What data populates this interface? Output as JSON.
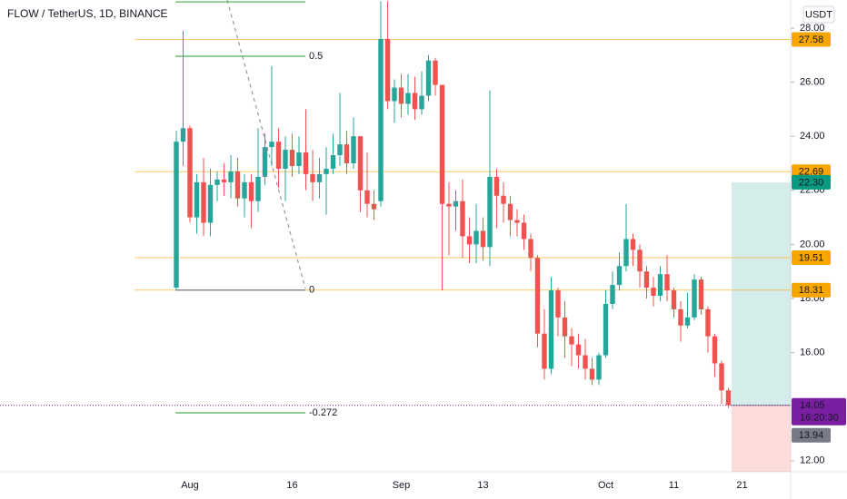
{
  "chart_data": {
    "type": "candlestick",
    "title": "FLOW / TetherUS, 1D, BINANCE",
    "currency": "USDT",
    "categories": [
      null,
      null,
      "Aug",
      null,
      null,
      null,
      null,
      null,
      null,
      null,
      null,
      null,
      null,
      null,
      null,
      null,
      null,
      "16",
      null,
      null,
      null,
      null,
      null,
      null,
      null,
      null,
      null,
      null,
      null,
      null,
      null,
      null,
      null,
      "Sep",
      null,
      null,
      null,
      null,
      null,
      null,
      null,
      null,
      null,
      null,
      null,
      "13",
      null,
      null,
      null,
      null,
      null,
      null,
      null,
      null,
      null,
      null,
      null,
      null,
      null,
      null,
      null,
      null,
      null,
      "Oct",
      null,
      null,
      null,
      null,
      null,
      null,
      null,
      null,
      null,
      "11",
      null,
      null,
      null,
      null,
      null,
      null,
      null,
      null,
      null,
      "21",
      null,
      null,
      null,
      null,
      null,
      null,
      null
    ],
    "open": [
      18.4,
      23.8,
      24.3,
      21.0,
      22.3,
      20.8,
      22.2,
      22.4,
      22.3,
      22.7,
      21.7,
      22.3,
      21.6,
      22.5,
      23.6,
      23.8,
      22.8,
      23.5,
      22.9,
      23.4,
      22.6,
      22.3,
      22.6,
      22.8,
      23.3,
      23.7,
      23.0,
      24.0,
      22.0,
      21.5,
      21.6,
      27.6,
      25.3,
      25.8,
      25.2,
      25.6,
      25.0,
      25.5,
      26.8,
      25.9,
      21.5,
      21.4,
      21.6,
      20.3,
      20.0,
      20.5,
      19.9,
      22.5,
      21.8,
      21.5,
      20.9,
      20.8,
      20.2,
      19.5,
      16.7,
      15.4,
      18.3,
      17.3,
      16.6,
      16.3,
      15.9,
      15.4,
      15.0,
      15.9,
      17.8,
      18.5,
      19.2,
      20.2,
      19.8,
      19.0,
      18.4,
      18.1,
      18.9,
      18.3,
      17.6,
      17.0,
      17.3,
      18.7,
      17.6,
      16.6,
      15.6,
      14.6,
      null,
      null,
      null,
      null,
      null,
      null,
      null,
      null,
      null
    ],
    "high": [
      24.2,
      27.9,
      24.4,
      22.6,
      23.2,
      22.8,
      22.7,
      23.0,
      23.3,
      23.2,
      22.6,
      22.6,
      24.3,
      24.1,
      26.6,
      24.3,
      24.0,
      24.1,
      24.0,
      25.0,
      23.5,
      23.2,
      23.6,
      24.1,
      25.6,
      24.2,
      24.7,
      24.0,
      23.4,
      22.0,
      29.0,
      29.0,
      26.1,
      26.3,
      26.3,
      26.2,
      26.4,
      27.0,
      26.9,
      25.9,
      22.3,
      22.0,
      22.4,
      21.0,
      21.5,
      21.0,
      25.7,
      22.8,
      22.3,
      21.8,
      21.3,
      21.1,
      20.4,
      19.6,
      17.6,
      18.8,
      18.4,
      17.9,
      16.9,
      16.7,
      16.5,
      15.8,
      16.0,
      18.3,
      19.0,
      19.7,
      21.5,
      20.4,
      20.0,
      19.2,
      18.8,
      19.2,
      19.6,
      18.4,
      17.9,
      18.2,
      18.9,
      18.8,
      17.7,
      16.7,
      15.7,
      14.7,
      null,
      null,
      null,
      null,
      null,
      null,
      null,
      null,
      null
    ],
    "low": [
      18.31,
      22.9,
      20.8,
      20.4,
      20.3,
      20.3,
      21.6,
      21.8,
      21.7,
      21.4,
      21.0,
      20.6,
      21.2,
      22.2,
      22.9,
      22.1,
      21.6,
      22.5,
      22.6,
      22.0,
      21.6,
      21.7,
      21.1,
      22.6,
      22.9,
      22.6,
      22.8,
      21.2,
      21.0,
      20.9,
      21.4,
      25.0,
      24.5,
      24.7,
      24.8,
      24.6,
      24.8,
      25.3,
      25.5,
      18.3,
      19.6,
      20.5,
      19.5,
      19.3,
      19.3,
      19.4,
      19.2,
      20.6,
      20.8,
      20.3,
      20.3,
      19.8,
      19.0,
      16.2,
      15.0,
      15.2,
      16.6,
      15.8,
      15.5,
      15.4,
      15.0,
      14.8,
      14.8,
      15.8,
      17.6,
      18.3,
      19.0,
      19.2,
      18.4,
      18.0,
      17.7,
      17.9,
      17.9,
      17.3,
      16.4,
      16.9,
      17.2,
      17.4,
      16.0,
      15.1,
      14.1,
      13.95,
      null,
      null,
      null,
      null,
      null,
      null,
      null,
      null,
      null
    ],
    "close": [
      23.8,
      24.3,
      21.0,
      22.3,
      20.8,
      22.2,
      22.4,
      22.3,
      22.7,
      21.7,
      22.3,
      21.6,
      22.5,
      23.6,
      23.8,
      22.8,
      23.5,
      22.9,
      23.4,
      22.6,
      22.3,
      22.6,
      22.8,
      23.3,
      23.7,
      23.0,
      24.0,
      22.0,
      21.5,
      21.3,
      27.6,
      25.3,
      25.8,
      25.2,
      25.6,
      25.0,
      25.5,
      26.8,
      25.9,
      21.5,
      21.4,
      21.6,
      20.3,
      20.0,
      20.5,
      19.9,
      22.5,
      21.8,
      21.5,
      20.9,
      20.8,
      20.2,
      19.5,
      16.7,
      15.4,
      18.3,
      17.3,
      16.6,
      16.3,
      15.9,
      15.4,
      15.0,
      15.9,
      17.8,
      18.5,
      19.2,
      20.2,
      19.8,
      19.0,
      18.4,
      18.1,
      18.9,
      18.3,
      17.6,
      17.0,
      17.3,
      18.7,
      17.6,
      16.6,
      15.6,
      14.6,
      14.05,
      null,
      null,
      null,
      null,
      null,
      null,
      null,
      null,
      null
    ],
    "up_color": "#26a69a",
    "down_color": "#ef5350",
    "ylim": [
      11.59,
      29.04
    ],
    "yticks": [
      {
        "value": 12,
        "label": "12.00"
      },
      {
        "value": 16,
        "label": "16.00"
      },
      {
        "value": 18,
        "label": "18.00"
      },
      {
        "value": 20,
        "label": "20.00"
      },
      {
        "value": 22,
        "label": "22.00"
      },
      {
        "value": 24,
        "label": "24.00"
      },
      {
        "value": 26,
        "label": "26.00"
      },
      {
        "value": 28,
        "label": "28.00"
      }
    ],
    "grid": false,
    "levels": [
      27.58,
      22.69,
      19.51,
      18.31
    ],
    "level_color": "#f7a600",
    "fib_levels": [
      {
        "value": 28.97
      },
      {
        "value": 26.96,
        "label": "0.5"
      },
      {
        "value": 18.31,
        "label": "0"
      },
      {
        "value": 13.77,
        "label": "-0.272"
      }
    ],
    "position": {
      "target": {
        "value": 22.3,
        "label": "22.30"
      },
      "entry": 14.05
    },
    "last_price": 14.05,
    "countdown": "16:20:30",
    "marker_price": 13.94
  }
}
